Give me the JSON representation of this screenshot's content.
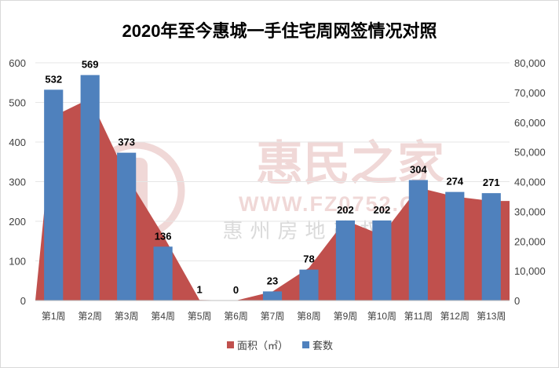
{
  "chart_data": {
    "type": "bar",
    "title": "2020年至今惠城一手住宅周网签情况对照",
    "categories": [
      "第1周",
      "第2周",
      "第3周",
      "第4周",
      "第5周",
      "第6周",
      "第7周",
      "第8周",
      "第9周",
      "第10周",
      "第11周",
      "第12周",
      "第13周"
    ],
    "series": [
      {
        "name": "面积（㎡）",
        "type": "area",
        "axis": "right",
        "color": "#c0504d",
        "values": [
          62000,
          68000,
          42000,
          22000,
          200,
          0,
          3000,
          11000,
          27000,
          22000,
          38000,
          35000,
          33500
        ]
      },
      {
        "name": "套数",
        "type": "bar",
        "axis": "left",
        "color": "#4f81bd",
        "values": [
          532,
          569,
          373,
          136,
          1,
          0,
          23,
          78,
          202,
          202,
          304,
          274,
          271
        ],
        "labels": [
          "532",
          "569",
          "373",
          "136",
          "1",
          "0",
          "23",
          "78",
          "202",
          "202",
          "304",
          "274",
          "271"
        ]
      }
    ],
    "y_left": {
      "min": 0,
      "max": 600,
      "step": 100,
      "ticks": [
        "0",
        "100",
        "200",
        "300",
        "400",
        "500",
        "600"
      ]
    },
    "y_right": {
      "min": 0,
      "max": 80000,
      "step": 10000,
      "ticks": [
        "0",
        "10,000",
        "20,000",
        "30,000",
        "40,000",
        "50,000",
        "60,000",
        "70,000",
        "80,000"
      ]
    },
    "legend": {
      "position": "bottom",
      "items": [
        {
          "label": "面积（㎡）",
          "color": "#c0504d"
        },
        {
          "label": "套数",
          "color": "#4f81bd"
        }
      ]
    },
    "watermark": {
      "line1": "惠民之家",
      "line2": "WWW.FZ0752.COM",
      "line3": "惠州房地产权威媒体"
    }
  }
}
